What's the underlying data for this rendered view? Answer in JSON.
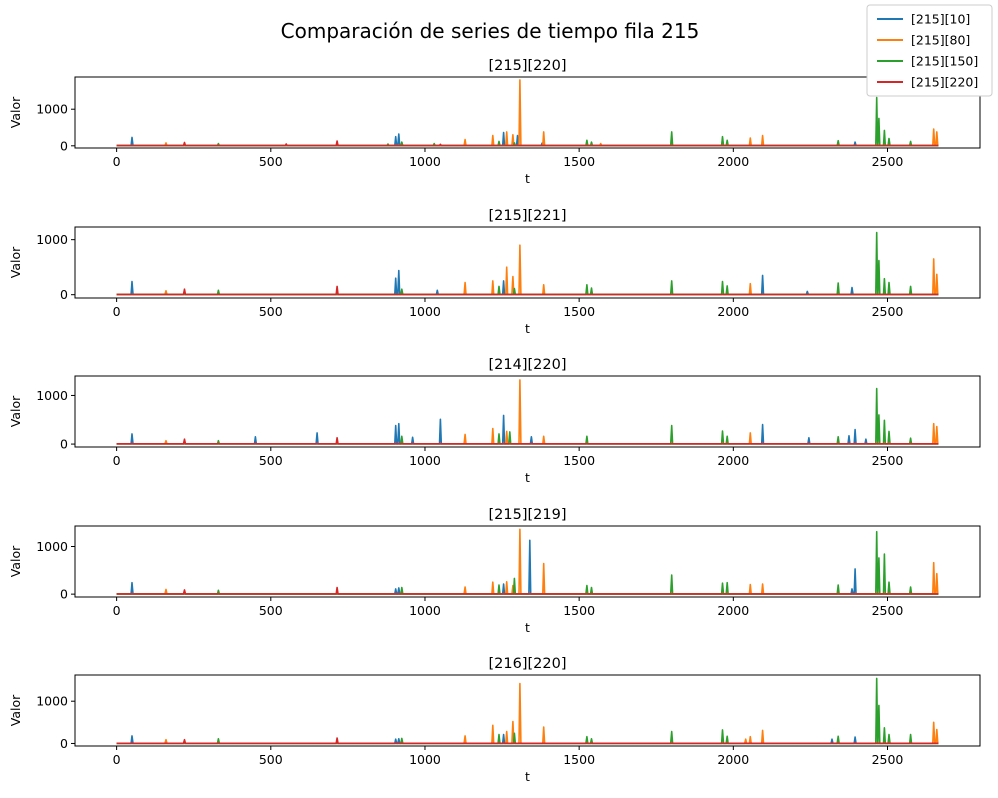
{
  "chart_data": {
    "type": "line",
    "suptitle": "Comparación de series de tiempo fila 215",
    "legend": {
      "placement": "top-right",
      "entries": [
        "[215][10]",
        "[215][80]",
        "[215][150]",
        "[215][220]"
      ]
    },
    "series_colors": [
      "#1f77b4",
      "#ff7f0e",
      "#2ca02c",
      "#d62728"
    ],
    "xlabel": "t",
    "ylabel": "Valor",
    "xlim": [
      -135,
      2800
    ],
    "xticks": [
      0,
      500,
      1000,
      1500,
      2000,
      2500
    ],
    "subplots": [
      {
        "title": "[215][220]",
        "ylim": [
          -60,
          1880
        ],
        "yticks": [
          0,
          1000
        ],
        "series": [
          {
            "name": "[215][10]",
            "spikes": [
              [
                50,
                230
              ],
              [
                905,
                250
              ],
              [
                915,
                320
              ],
              [
                1255,
                360
              ],
              [
                1300,
                280
              ],
              [
                1380,
                70
              ],
              [
                2395,
                100
              ]
            ]
          },
          {
            "name": "[215][80]",
            "spikes": [
              [
                160,
                80
              ],
              [
                1130,
                170
              ],
              [
                1220,
                280
              ],
              [
                1265,
                380
              ],
              [
                1285,
                300
              ],
              [
                1308,
                1800
              ],
              [
                1385,
                380
              ],
              [
                1570,
                60
              ],
              [
                1800,
                90
              ],
              [
                2055,
                210
              ],
              [
                2095,
                280
              ],
              [
                2650,
                460
              ],
              [
                2660,
                380
              ]
            ]
          },
          {
            "name": "[215][150]",
            "spikes": [
              [
                330,
                60
              ],
              [
                880,
                50
              ],
              [
                925,
                100
              ],
              [
                1030,
                60
              ],
              [
                1240,
                120
              ],
              [
                1290,
                80
              ],
              [
                1525,
                150
              ],
              [
                1540,
                100
              ],
              [
                1800,
                380
              ],
              [
                1965,
                250
              ],
              [
                1980,
                150
              ],
              [
                2340,
                140
              ],
              [
                2465,
                1320
              ],
              [
                2472,
                750
              ],
              [
                2490,
                420
              ],
              [
                2505,
                200
              ],
              [
                2575,
                120
              ]
            ]
          },
          {
            "name": "[215][220]",
            "spikes": [
              [
                220,
                90
              ],
              [
                550,
                50
              ],
              [
                715,
                130
              ],
              [
                1050,
                40
              ]
            ]
          }
        ]
      },
      {
        "title": "[215][221]",
        "ylim": [
          -60,
          1230
        ],
        "yticks": [
          0,
          1000
        ],
        "series": [
          {
            "name": "[215][10]",
            "spikes": [
              [
                50,
                240
              ],
              [
                905,
                300
              ],
              [
                915,
                440
              ],
              [
                1040,
                80
              ],
              [
                1255,
                250
              ],
              [
                2095,
                350
              ],
              [
                2240,
                60
              ],
              [
                2385,
                130
              ]
            ]
          },
          {
            "name": "[215][80]",
            "spikes": [
              [
                160,
                70
              ],
              [
                1130,
                220
              ],
              [
                1220,
                250
              ],
              [
                1265,
                500
              ],
              [
                1285,
                330
              ],
              [
                1308,
                900
              ],
              [
                1385,
                180
              ],
              [
                2055,
                200
              ],
              [
                2650,
                650
              ],
              [
                2660,
                370
              ]
            ]
          },
          {
            "name": "[215][150]",
            "spikes": [
              [
                330,
                80
              ],
              [
                925,
                100
              ],
              [
                1240,
                150
              ],
              [
                1290,
                110
              ],
              [
                1525,
                180
              ],
              [
                1540,
                120
              ],
              [
                1800,
                250
              ],
              [
                1965,
                240
              ],
              [
                1980,
                160
              ],
              [
                2340,
                210
              ],
              [
                2465,
                1130
              ],
              [
                2472,
                620
              ],
              [
                2490,
                290
              ],
              [
                2505,
                220
              ],
              [
                2575,
                150
              ]
            ]
          },
          {
            "name": "[215][220]",
            "spikes": [
              [
                220,
                100
              ],
              [
                715,
                150
              ]
            ]
          }
        ]
      },
      {
        "title": "[214][220]",
        "ylim": [
          -60,
          1400
        ],
        "yticks": [
          0,
          1000
        ],
        "series": [
          {
            "name": "[215][10]",
            "spikes": [
              [
                50,
                210
              ],
              [
                450,
                150
              ],
              [
                650,
                230
              ],
              [
                905,
                380
              ],
              [
                915,
                420
              ],
              [
                960,
                140
              ],
              [
                1050,
                510
              ],
              [
                1255,
                590
              ],
              [
                1345,
                150
              ],
              [
                2095,
                400
              ],
              [
                2245,
                130
              ],
              [
                2375,
                170
              ],
              [
                2395,
                300
              ],
              [
                2430,
                100
              ]
            ]
          },
          {
            "name": "[215][80]",
            "spikes": [
              [
                160,
                70
              ],
              [
                1130,
                200
              ],
              [
                1220,
                320
              ],
              [
                1265,
                260
              ],
              [
                1308,
                1320
              ],
              [
                1385,
                160
              ],
              [
                2055,
                230
              ],
              [
                2650,
                420
              ],
              [
                2660,
                360
              ]
            ]
          },
          {
            "name": "[215][150]",
            "spikes": [
              [
                330,
                70
              ],
              [
                925,
                160
              ],
              [
                1240,
                210
              ],
              [
                1275,
                250
              ],
              [
                1525,
                160
              ],
              [
                1800,
                380
              ],
              [
                1965,
                270
              ],
              [
                1980,
                160
              ],
              [
                2340,
                150
              ],
              [
                2465,
                1140
              ],
              [
                2472,
                600
              ],
              [
                2490,
                490
              ],
              [
                2505,
                260
              ],
              [
                2575,
                120
              ]
            ]
          },
          {
            "name": "[215][220]",
            "spikes": [
              [
                220,
                100
              ],
              [
                715,
                130
              ]
            ]
          }
        ]
      },
      {
        "title": "[215][219]",
        "ylim": [
          -60,
          1430
        ],
        "yticks": [
          0,
          1000
        ],
        "series": [
          {
            "name": "[215][10]",
            "spikes": [
              [
                50,
                240
              ],
              [
                905,
                110
              ],
              [
                915,
                130
              ],
              [
                1255,
                210
              ],
              [
                1340,
                1130
              ],
              [
                2385,
                110
              ],
              [
                2395,
                530
              ]
            ]
          },
          {
            "name": "[215][80]",
            "spikes": [
              [
                160,
                100
              ],
              [
                1130,
                150
              ],
              [
                1220,
                250
              ],
              [
                1265,
                260
              ],
              [
                1285,
                180
              ],
              [
                1308,
                1360
              ],
              [
                1385,
                640
              ],
              [
                2055,
                200
              ],
              [
                2095,
                210
              ],
              [
                2650,
                660
              ],
              [
                2660,
                430
              ]
            ]
          },
          {
            "name": "[215][150]",
            "spikes": [
              [
                330,
                80
              ],
              [
                925,
                140
              ],
              [
                1240,
                190
              ],
              [
                1290,
                330
              ],
              [
                1525,
                180
              ],
              [
                1540,
                140
              ],
              [
                1800,
                400
              ],
              [
                1965,
                230
              ],
              [
                1980,
                240
              ],
              [
                2340,
                190
              ],
              [
                2465,
                1310
              ],
              [
                2472,
                760
              ],
              [
                2490,
                840
              ],
              [
                2505,
                250
              ],
              [
                2575,
                150
              ]
            ]
          },
          {
            "name": "[215][220]",
            "spikes": [
              [
                220,
                90
              ],
              [
                715,
                140
              ]
            ]
          }
        ]
      },
      {
        "title": "[216][220]",
        "ylim": [
          -60,
          1620
        ],
        "yticks": [
          0,
          1000
        ],
        "series": [
          {
            "name": "[215][10]",
            "spikes": [
              [
                50,
                180
              ],
              [
                905,
                100
              ],
              [
                915,
                110
              ],
              [
                1255,
                210
              ],
              [
                2320,
                100
              ],
              [
                2395,
                150
              ]
            ]
          },
          {
            "name": "[215][80]",
            "spikes": [
              [
                160,
                90
              ],
              [
                1130,
                180
              ],
              [
                1220,
                430
              ],
              [
                1265,
                280
              ],
              [
                1285,
                520
              ],
              [
                1308,
                1420
              ],
              [
                1385,
                390
              ],
              [
                2040,
                100
              ],
              [
                2055,
                160
              ],
              [
                2095,
                310
              ],
              [
                2650,
                500
              ],
              [
                2660,
                330
              ]
            ]
          },
          {
            "name": "[215][150]",
            "spikes": [
              [
                330,
                110
              ],
              [
                925,
                120
              ],
              [
                1240,
                210
              ],
              [
                1290,
                240
              ],
              [
                1525,
                160
              ],
              [
                1540,
                110
              ],
              [
                1800,
                280
              ],
              [
                1965,
                320
              ],
              [
                1980,
                170
              ],
              [
                2340,
                170
              ],
              [
                2465,
                1540
              ],
              [
                2472,
                900
              ],
              [
                2490,
                370
              ],
              [
                2505,
                210
              ],
              [
                2575,
                210
              ]
            ]
          },
          {
            "name": "[215][220]",
            "spikes": [
              [
                220,
                90
              ],
              [
                715,
                130
              ]
            ]
          }
        ]
      }
    ]
  }
}
